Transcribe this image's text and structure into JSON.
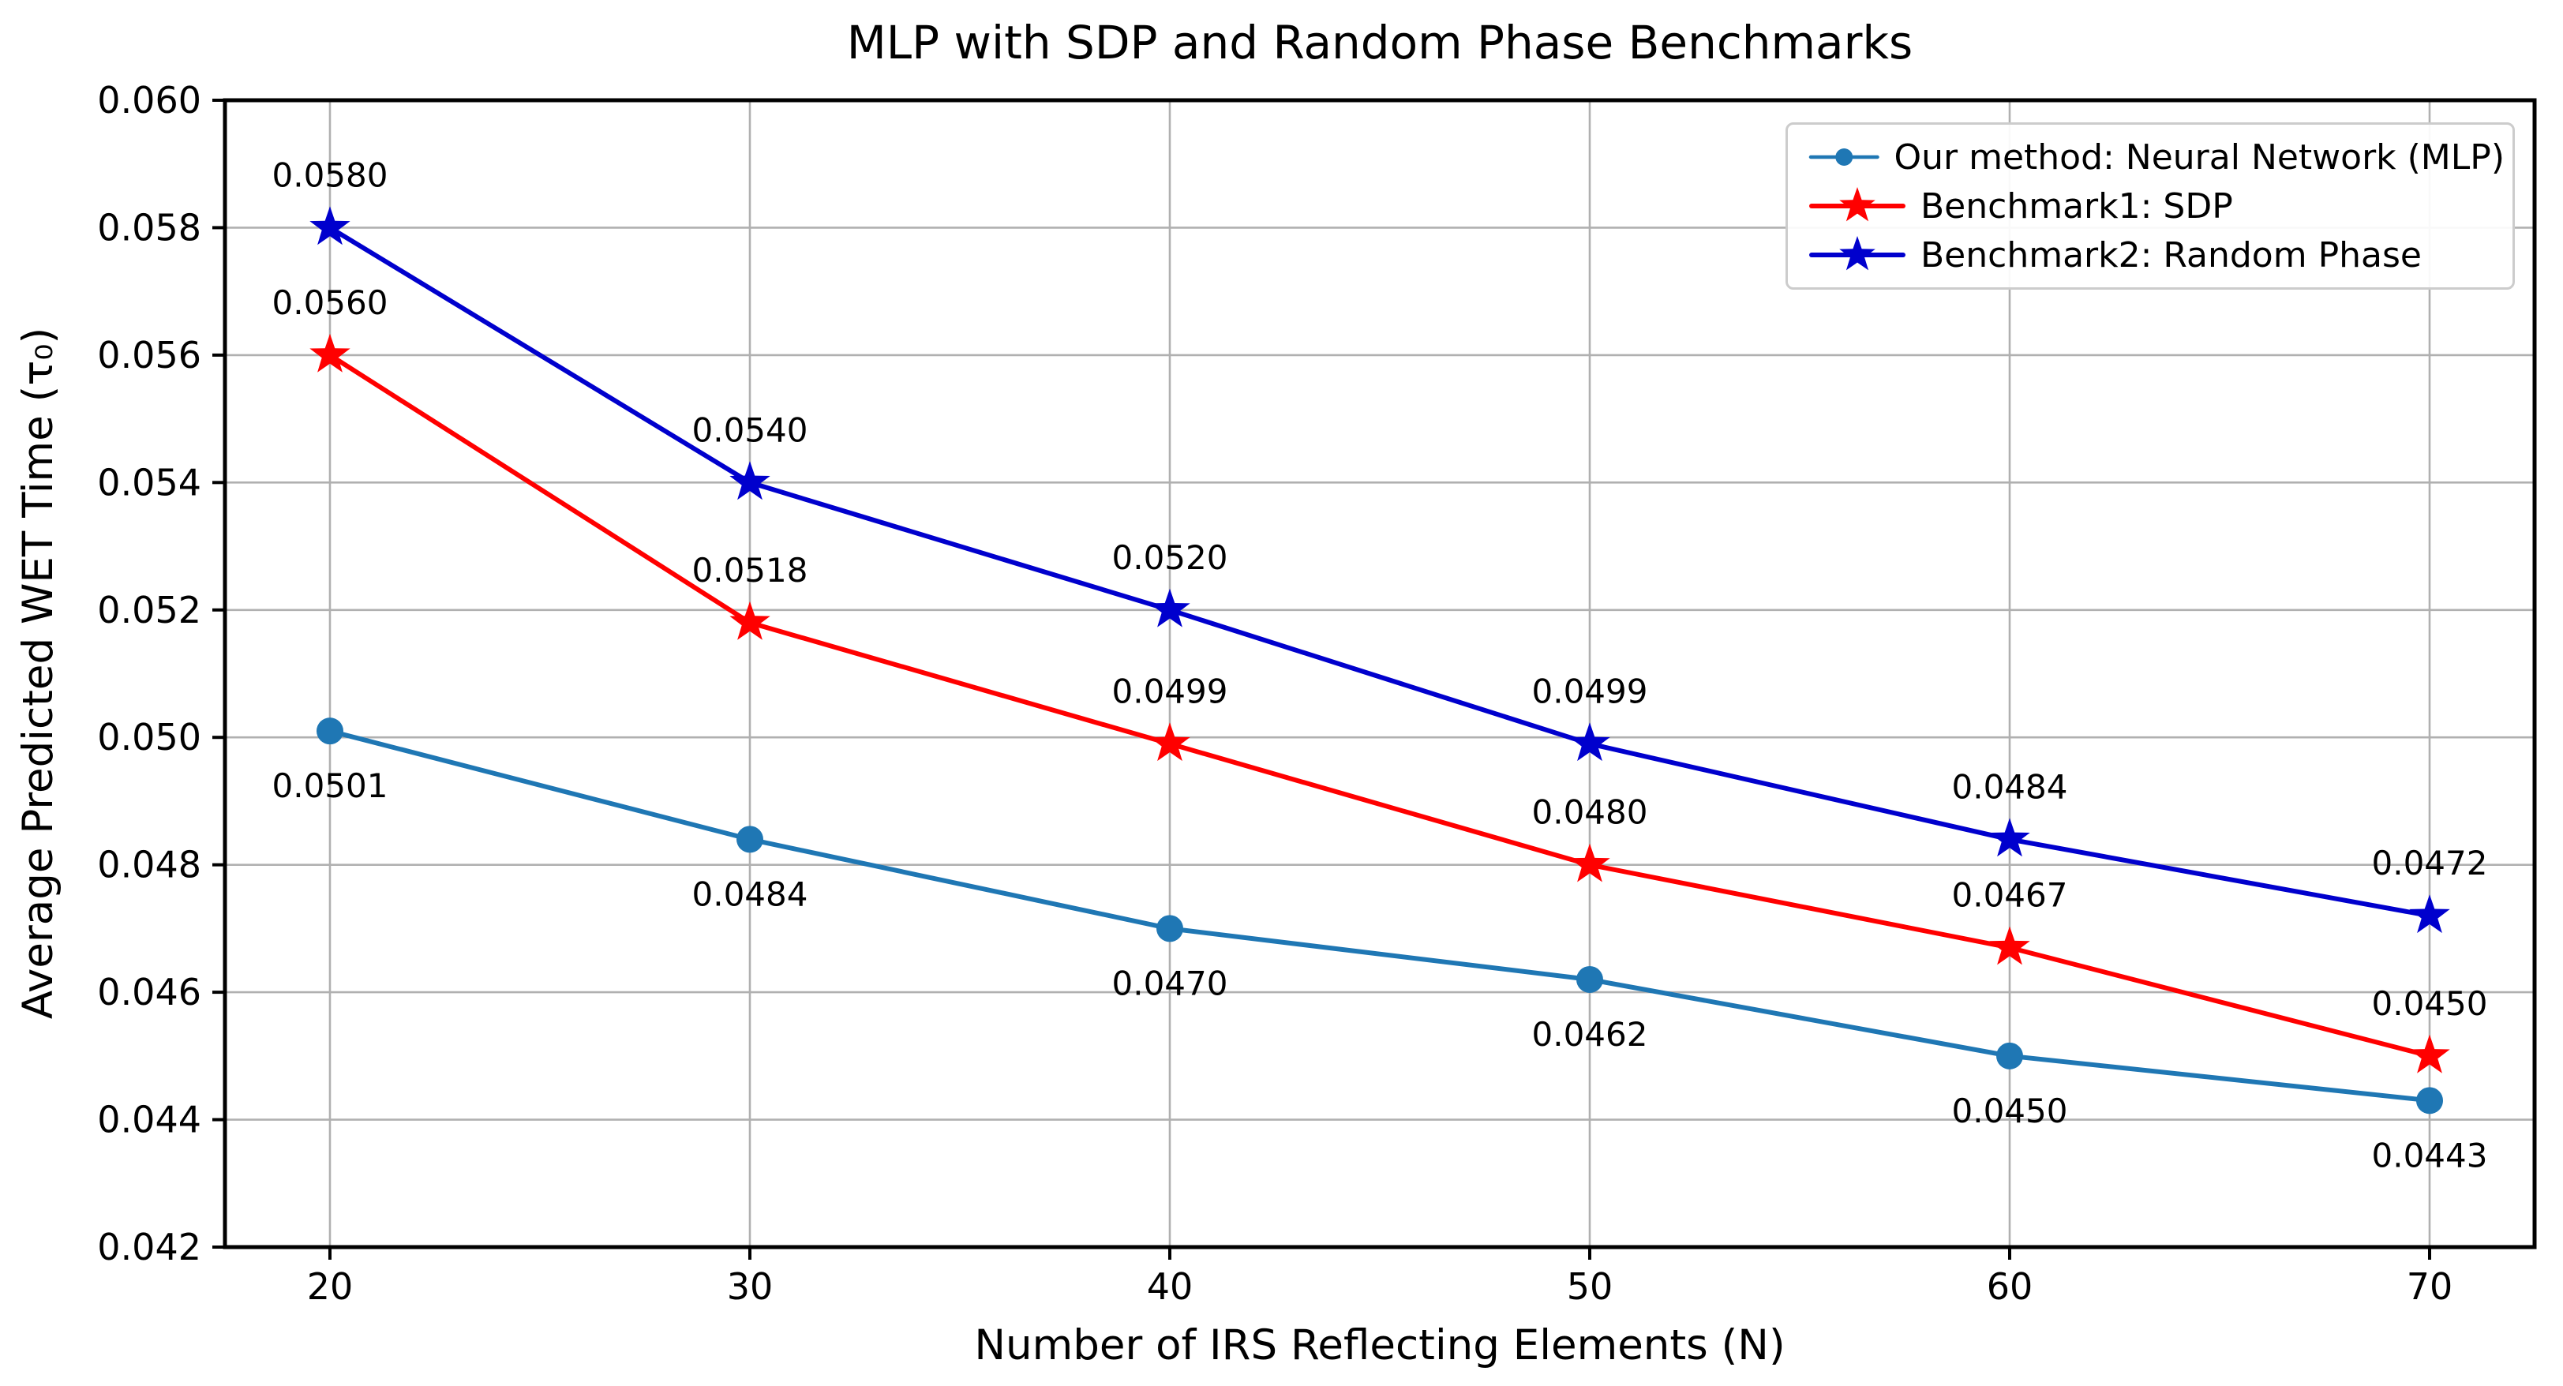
{
  "chart_data": {
    "type": "line",
    "title": "MLP with SDP and Random Phase Benchmarks",
    "xlabel": "Number of IRS Reflecting Elements (N)",
    "ylabel": "Average Predicted WET Time (τ₀)",
    "x": [
      20,
      30,
      40,
      50,
      60,
      70
    ],
    "x_tick_labels": [
      "20",
      "30",
      "40",
      "50",
      "60",
      "70"
    ],
    "y_tick_labels": [
      "0.042",
      "0.044",
      "0.046",
      "0.048",
      "0.050",
      "0.052",
      "0.054",
      "0.056",
      "0.058",
      "0.060"
    ],
    "xlim": [
      17.5,
      72.5
    ],
    "ylim": [
      0.042,
      0.06
    ],
    "grid": true,
    "grid_color": "#b0b0b0",
    "spine_color": "#000000",
    "legend_position": "upper right",
    "series": [
      {
        "name": "Our method: Neural Network (MLP)",
        "color": "#1f77b4",
        "marker": "circle",
        "values": [
          0.0501,
          0.0484,
          0.047,
          0.0462,
          0.045,
          0.0443
        ],
        "point_labels": [
          "0.0501",
          "0.0484",
          "0.0470",
          "0.0462",
          "0.0450",
          "0.0443"
        ],
        "label_side": "below"
      },
      {
        "name": "Benchmark1: SDP",
        "color": "#ff0000",
        "marker": "star",
        "values": [
          0.056,
          0.0518,
          0.0499,
          0.048,
          0.0467,
          0.045
        ],
        "point_labels": [
          "0.0560",
          "0.0518",
          "0.0499",
          "0.0480",
          "0.0467",
          "0.0450"
        ],
        "label_side": "above"
      },
      {
        "name": "Benchmark2: Random Phase",
        "color": "#0000cd",
        "marker": "star",
        "values": [
          0.058,
          0.054,
          0.052,
          0.0499,
          0.0484,
          0.0472
        ],
        "point_labels": [
          "0.0580",
          "0.0540",
          "0.0520",
          "0.0499",
          "0.0484",
          "0.0472"
        ],
        "label_side": "above"
      }
    ]
  }
}
